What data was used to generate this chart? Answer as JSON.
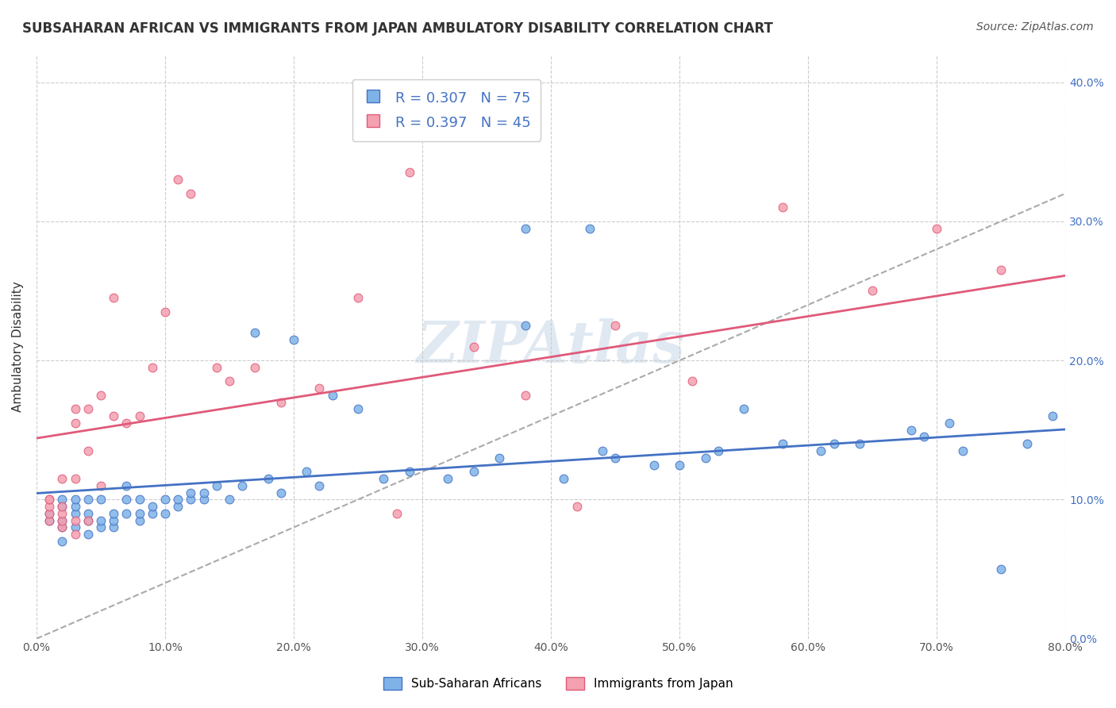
{
  "title": "SUBSAHARAN AFRICAN VS IMMIGRANTS FROM JAPAN AMBULATORY DISABILITY CORRELATION CHART",
  "source": "Source: ZipAtlas.com",
  "ylabel": "Ambulatory Disability",
  "xlabel": "",
  "watermark": "ZIPAtlas",
  "blue_R": 0.307,
  "blue_N": 75,
  "pink_R": 0.397,
  "pink_N": 45,
  "blue_color": "#7fb3e8",
  "pink_color": "#f4a0b0",
  "blue_line_color": "#4472c4",
  "pink_line_color": "#e05a7a",
  "dashed_line_color": "#aaaaaa",
  "legend1": "Sub-Saharan Africans",
  "legend2": "Immigrants from Japan",
  "xlim": [
    0.0,
    0.8
  ],
  "ylim": [
    0.0,
    0.42
  ],
  "yticks": [
    0.0,
    0.1,
    0.2,
    0.3,
    0.4
  ],
  "xticks": [
    0.0,
    0.1,
    0.2,
    0.3,
    0.4,
    0.5,
    0.6,
    0.7,
    0.8
  ],
  "blue_scatter_x": [
    0.01,
    0.01,
    0.02,
    0.02,
    0.02,
    0.02,
    0.02,
    0.03,
    0.03,
    0.03,
    0.03,
    0.04,
    0.04,
    0.04,
    0.04,
    0.05,
    0.05,
    0.05,
    0.06,
    0.06,
    0.06,
    0.07,
    0.07,
    0.07,
    0.08,
    0.08,
    0.08,
    0.09,
    0.09,
    0.1,
    0.1,
    0.11,
    0.11,
    0.12,
    0.12,
    0.13,
    0.13,
    0.14,
    0.15,
    0.16,
    0.17,
    0.18,
    0.19,
    0.2,
    0.21,
    0.22,
    0.23,
    0.25,
    0.27,
    0.29,
    0.32,
    0.34,
    0.36,
    0.38,
    0.41,
    0.43,
    0.45,
    0.48,
    0.5,
    0.53,
    0.55,
    0.58,
    0.61,
    0.64,
    0.68,
    0.71,
    0.38,
    0.44,
    0.52,
    0.62,
    0.69,
    0.72,
    0.75,
    0.77,
    0.79
  ],
  "blue_scatter_y": [
    0.085,
    0.09,
    0.07,
    0.08,
    0.095,
    0.1,
    0.085,
    0.08,
    0.09,
    0.095,
    0.1,
    0.075,
    0.085,
    0.09,
    0.1,
    0.08,
    0.085,
    0.1,
    0.08,
    0.085,
    0.09,
    0.09,
    0.1,
    0.11,
    0.085,
    0.09,
    0.1,
    0.09,
    0.095,
    0.09,
    0.1,
    0.095,
    0.1,
    0.1,
    0.105,
    0.1,
    0.105,
    0.11,
    0.1,
    0.11,
    0.22,
    0.115,
    0.105,
    0.215,
    0.12,
    0.11,
    0.175,
    0.165,
    0.115,
    0.12,
    0.115,
    0.12,
    0.13,
    0.225,
    0.115,
    0.295,
    0.13,
    0.125,
    0.125,
    0.135,
    0.165,
    0.14,
    0.135,
    0.14,
    0.15,
    0.155,
    0.295,
    0.135,
    0.13,
    0.14,
    0.145,
    0.135,
    0.05,
    0.14,
    0.16
  ],
  "pink_scatter_x": [
    0.01,
    0.01,
    0.01,
    0.01,
    0.01,
    0.02,
    0.02,
    0.02,
    0.02,
    0.02,
    0.03,
    0.03,
    0.03,
    0.03,
    0.03,
    0.04,
    0.04,
    0.04,
    0.05,
    0.05,
    0.06,
    0.06,
    0.07,
    0.08,
    0.09,
    0.1,
    0.11,
    0.12,
    0.14,
    0.15,
    0.17,
    0.19,
    0.22,
    0.25,
    0.28,
    0.34,
    0.38,
    0.42,
    0.29,
    0.45,
    0.51,
    0.58,
    0.65,
    0.7,
    0.75
  ],
  "pink_scatter_y": [
    0.085,
    0.09,
    0.095,
    0.1,
    0.1,
    0.08,
    0.085,
    0.09,
    0.095,
    0.115,
    0.075,
    0.085,
    0.115,
    0.155,
    0.165,
    0.085,
    0.135,
    0.165,
    0.11,
    0.175,
    0.16,
    0.245,
    0.155,
    0.16,
    0.195,
    0.235,
    0.33,
    0.32,
    0.195,
    0.185,
    0.195,
    0.17,
    0.18,
    0.245,
    0.09,
    0.21,
    0.175,
    0.095,
    0.335,
    0.225,
    0.185,
    0.31,
    0.25,
    0.295,
    0.265
  ]
}
